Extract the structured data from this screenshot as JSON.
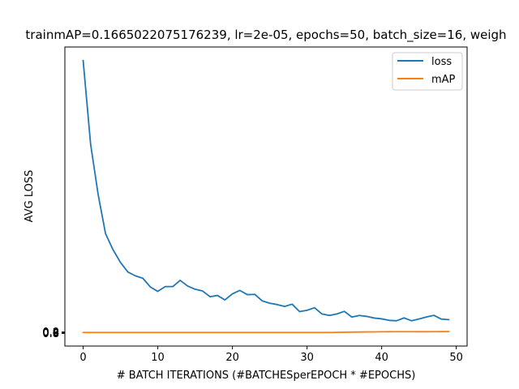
{
  "chart_data": {
    "type": "line",
    "title": "trainmAP=0.1665022075176239, lr=2e-05, epochs=50, batch_size=16, weigh",
    "xlabel": "# BATCH ITERATIONS (#BATCHESperEPOCH * #EPOCHS)",
    "ylabel": "AVG LOSS",
    "xlim": [
      -2.45,
      51.45
    ],
    "x_ticks": [
      0,
      10,
      20,
      30,
      40,
      50
    ],
    "y_tick_labels": [
      "0.0",
      "0.2",
      "0.4",
      "0.6",
      "0.8"
    ],
    "legend_position": "upper right",
    "grid": false,
    "x": [
      0,
      1,
      2,
      3,
      4,
      5,
      6,
      7,
      8,
      9,
      10,
      11,
      12,
      13,
      14,
      15,
      16,
      17,
      18,
      19,
      20,
      21,
      22,
      23,
      24,
      25,
      26,
      27,
      28,
      29,
      30,
      31,
      32,
      33,
      34,
      35,
      36,
      37,
      38,
      39,
      40,
      41,
      42,
      43,
      44,
      45,
      46,
      47,
      48,
      49
    ],
    "series": [
      {
        "name": "loss",
        "color": "#1f77b4",
        "values": [
          0.9993,
          0.6918,
          0.5086,
          0.363,
          0.3041,
          0.2574,
          0.222,
          0.2081,
          0.1992,
          0.1672,
          0.151,
          0.1685,
          0.1685,
          0.1915,
          0.1707,
          0.1588,
          0.1525,
          0.1315,
          0.136,
          0.1195,
          0.142,
          0.1545,
          0.139,
          0.14,
          0.116,
          0.1075,
          0.1025,
          0.0955,
          0.104,
          0.0765,
          0.0815,
          0.091,
          0.068,
          0.0625,
          0.068,
          0.0775,
          0.0565,
          0.0625,
          0.059,
          0.053,
          0.05,
          0.0445,
          0.043,
          0.0535,
          0.043,
          0.0495,
          0.057,
          0.063,
          0.049,
          0.047
        ]
      },
      {
        "name": "mAP",
        "color": "#ff7f0e",
        "values": [
          0.0,
          0.0,
          0.0,
          0.0,
          0.0,
          0.0,
          0.0,
          0.0,
          0.0,
          0.0,
          0.0,
          0.0,
          0.0,
          0.0,
          0.0,
          0.0,
          0.0,
          0.0,
          0.0,
          0.0,
          0.0,
          0.0,
          0.0,
          0.0,
          0.0,
          0.0,
          0.0,
          0.0,
          0.0,
          0.0,
          0.0,
          0.0,
          0.0,
          0.0,
          0.0004,
          0.0008,
          0.0012,
          0.0016,
          0.002,
          0.0022,
          0.0025,
          0.0028,
          0.003,
          0.003,
          0.0029,
          0.0028,
          0.0028,
          0.003,
          0.0031,
          0.0032
        ]
      }
    ]
  }
}
